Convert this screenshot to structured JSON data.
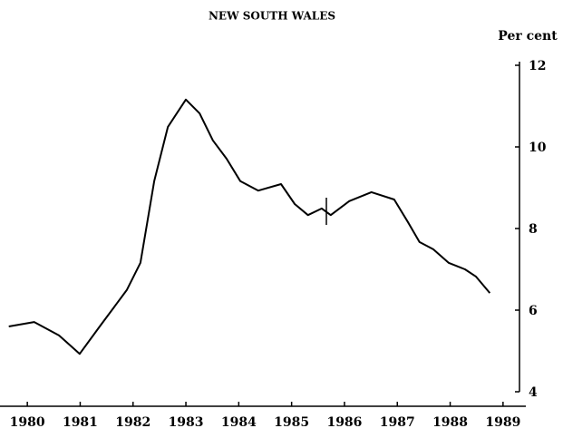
{
  "chart_data": {
    "type": "line",
    "title": "NEW SOUTH WALES",
    "y_axis_label": "Per cent",
    "x": [
      1980.15,
      1980.63,
      1981.1,
      1981.49,
      1981.87,
      1982.38,
      1982.64,
      1982.9,
      1983.16,
      1983.5,
      1983.76,
      1984.01,
      1984.27,
      1984.53,
      1984.87,
      1985.3,
      1985.56,
      1985.81,
      1986.07,
      1986.24,
      1986.59,
      1987.01,
      1987.44,
      1987.7,
      1987.92,
      1988.18,
      1988.47,
      1988.78,
      1988.99,
      1989.25
    ],
    "series": [
      {
        "color": "#000000",
        "values": [
          5.6,
          5.71,
          5.38,
          4.93,
          5.6,
          6.49,
          7.16,
          9.16,
          10.49,
          11.16,
          10.82,
          10.16,
          9.71,
          9.16,
          8.93,
          9.09,
          8.6,
          8.33,
          8.49,
          8.33,
          8.67,
          8.89,
          8.71,
          8.16,
          7.67,
          7.49,
          7.16,
          7.0,
          6.82,
          6.42
        ]
      }
    ],
    "xlim": [
      1980,
      1990
    ],
    "xticks": [
      {
        "value": 1980.5,
        "label": "1980"
      },
      {
        "value": 1981.5,
        "label": "1981"
      },
      {
        "value": 1982.5,
        "label": "1982"
      },
      {
        "value": 1983.5,
        "label": "1983"
      },
      {
        "value": 1984.5,
        "label": "1984"
      },
      {
        "value": 1985.5,
        "label": "1985"
      },
      {
        "value": 1986.5,
        "label": "1986"
      },
      {
        "value": 1987.5,
        "label": "1987"
      },
      {
        "value": 1988.5,
        "label": "1988"
      },
      {
        "value": 1989.5,
        "label": "1989"
      }
    ],
    "ylim": [
      4,
      12
    ],
    "yticks": [
      4,
      6,
      8,
      10,
      12
    ],
    "grid": false
  }
}
